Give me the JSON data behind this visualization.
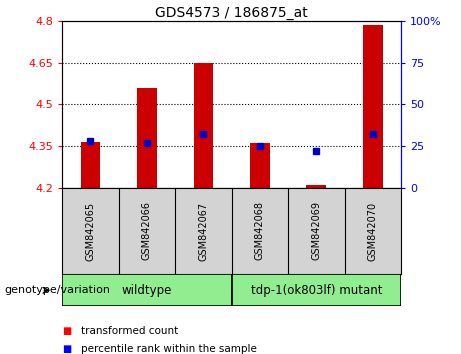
{
  "title": "GDS4573 / 186875_at",
  "samples": [
    "GSM842065",
    "GSM842066",
    "GSM842067",
    "GSM842068",
    "GSM842069",
    "GSM842070"
  ],
  "transformed_count": [
    4.365,
    4.56,
    4.65,
    4.36,
    4.21,
    4.785
  ],
  "percentile_rank": [
    28,
    27,
    32,
    25,
    22,
    32
  ],
  "ymin": 4.2,
  "ymax": 4.8,
  "yticks": [
    4.2,
    4.35,
    4.5,
    4.65,
    4.8
  ],
  "y2min": 0,
  "y2max": 100,
  "y2ticks": [
    0,
    25,
    50,
    75,
    100
  ],
  "bar_color": "#cc0000",
  "dot_color": "#0000cc",
  "bar_bottom": 4.2,
  "grid_style": "dotted",
  "plot_bg": "#ffffff",
  "legend_red_label": "transformed count",
  "legend_blue_label": "percentile rank within the sample",
  "genotype_label": "genotype/variation",
  "bar_width": 0.35,
  "group_wt_label": "wildtype",
  "group_mut_label": "tdp-1(ok803lf) mutant",
  "group_color": "#90ee90"
}
